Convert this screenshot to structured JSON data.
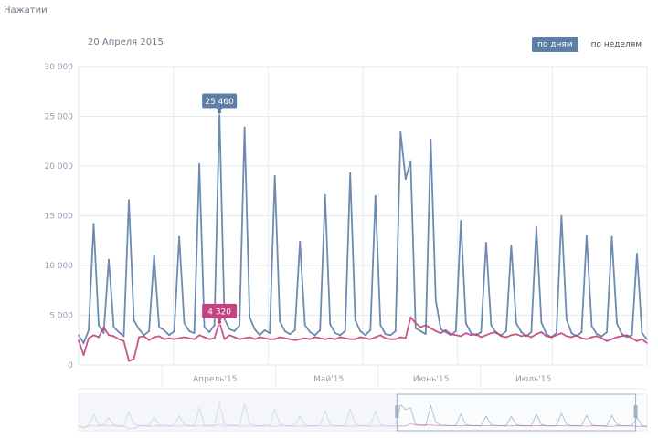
{
  "header": {
    "title": "Нажатии",
    "date": "20 Апреля 2015"
  },
  "modes": [
    {
      "label": "по дням",
      "active": true
    },
    {
      "label": "по неделям",
      "active": false
    }
  ],
  "colors": {
    "primary": "#5d7ea7",
    "secondary": "#c2437f",
    "grid": "#e6ebf1"
  },
  "chart_data": {
    "type": "line",
    "title": "",
    "xlabel": "",
    "ylabel": "",
    "ylim": [
      0,
      30000
    ],
    "yticks": [
      "30 000",
      "25 000",
      "20 000",
      "15 000",
      "10 000",
      "5 000",
      "0"
    ],
    "xticks": [
      "Апрель'15",
      "Май'15",
      "Июнь'15",
      "Июль'15"
    ],
    "grid": true,
    "series": [
      {
        "name": "",
        "color": "#5d7ea7",
        "values": [
          3000,
          2200,
          3500,
          14200,
          4000,
          3200,
          10600,
          3800,
          3300,
          2900,
          16600,
          4500,
          3600,
          3000,
          3400,
          11000,
          3800,
          3500,
          3000,
          3400,
          12900,
          4200,
          3400,
          3200,
          20200,
          3800,
          3300,
          4000,
          25460,
          4600,
          3600,
          3400,
          4000,
          23900,
          4800,
          3600,
          3000,
          3500,
          3200,
          19000,
          4400,
          3400,
          3100,
          3500,
          12400,
          4000,
          3300,
          3000,
          3500,
          17100,
          4100,
          3200,
          3000,
          3400,
          19300,
          4500,
          3400,
          3000,
          3500,
          17000,
          4000,
          3100,
          3000,
          3400,
          23400,
          18700,
          20500,
          3700,
          3400,
          3100,
          22700,
          6500,
          3600,
          3300,
          3000,
          3400,
          14500,
          4200,
          3200,
          3000,
          3300,
          12300,
          4000,
          3200,
          3000,
          3400,
          12000,
          4200,
          3300,
          2900,
          3300,
          13900,
          4300,
          3100,
          2800,
          3200,
          15000,
          4600,
          3200,
          2900,
          3300,
          13000,
          3900,
          3100,
          2900,
          3300,
          12900,
          4200,
          3100,
          2800,
          3000,
          11200,
          3200,
          2600
        ]
      },
      {
        "name": "",
        "color": "#c2437f",
        "values": [
          2500,
          1000,
          2700,
          3000,
          2800,
          3800,
          3000,
          2900,
          2600,
          2400,
          400,
          600,
          2800,
          2900,
          2500,
          2800,
          2900,
          2600,
          2700,
          2600,
          2700,
          2800,
          2700,
          2600,
          3000,
          2800,
          2600,
          2700,
          4320,
          2600,
          3000,
          2800,
          2600,
          2700,
          2800,
          2600,
          2800,
          2700,
          2600,
          2600,
          2800,
          2700,
          2600,
          2500,
          2600,
          2700,
          2600,
          2800,
          2700,
          2600,
          2700,
          2600,
          2800,
          2700,
          2600,
          2600,
          2800,
          2700,
          2600,
          2800,
          3000,
          2700,
          2600,
          2600,
          2800,
          2700,
          4800,
          4200,
          3800,
          4000,
          3700,
          3400,
          3200,
          3500,
          3100,
          3000,
          2900,
          3200,
          3000,
          3100,
          2800,
          3000,
          3200,
          3300,
          2900,
          2800,
          3000,
          3100,
          2900,
          3000,
          2800,
          3100,
          3300,
          2900,
          2800,
          3000,
          3200,
          2900,
          2800,
          3000,
          2700,
          2600,
          2800,
          2900,
          2700,
          2400,
          2600,
          2800,
          2900,
          3000,
          2700,
          2400,
          2600,
          2200
        ]
      }
    ],
    "annotations": [
      {
        "label": "25 460",
        "series": 0,
        "index": 28
      },
      {
        "label": "4 320",
        "series": 1,
        "index": 28
      }
    ]
  }
}
